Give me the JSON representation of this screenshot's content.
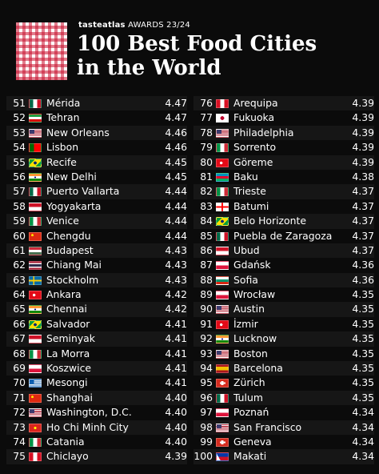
{
  "header": {
    "brand_name": "tasteatlas",
    "brand_suffix": "AWARDS 23/24",
    "title_line1": "100 Best Food Cities",
    "title_line2": "in the World"
  },
  "colors": {
    "background": "#0b0b0b",
    "logo_red": "#c8102e"
  },
  "left_column": [
    {
      "rank": "51",
      "city": "Mérida",
      "score": "4.47",
      "flag": "mexico-flag"
    },
    {
      "rank": "52",
      "city": "Tehran",
      "score": "4.47",
      "flag": "iran-flag"
    },
    {
      "rank": "53",
      "city": "New Orleans",
      "score": "4.46",
      "flag": "usa-flag"
    },
    {
      "rank": "54",
      "city": "Lisbon",
      "score": "4.46",
      "flag": "portugal-flag"
    },
    {
      "rank": "55",
      "city": "Recife",
      "score": "4.45",
      "flag": "brazil-flag"
    },
    {
      "rank": "56",
      "city": "New Delhi",
      "score": "4.45",
      "flag": "india-flag"
    },
    {
      "rank": "57",
      "city": "Puerto Vallarta",
      "score": "4.44",
      "flag": "mexico-flag"
    },
    {
      "rank": "58",
      "city": "Yogyakarta",
      "score": "4.44",
      "flag": "indonesia-flag"
    },
    {
      "rank": "59",
      "city": "Venice",
      "score": "4.44",
      "flag": "italy-flag"
    },
    {
      "rank": "60",
      "city": "Chengdu",
      "score": "4.44",
      "flag": "china-flag"
    },
    {
      "rank": "61",
      "city": "Budapest",
      "score": "4.43",
      "flag": "hungary-flag"
    },
    {
      "rank": "62",
      "city": "Chiang Mai",
      "score": "4.43",
      "flag": "thailand-flag"
    },
    {
      "rank": "63",
      "city": "Stockholm",
      "score": "4.43",
      "flag": "sweden-flag"
    },
    {
      "rank": "64",
      "city": "Ankara",
      "score": "4.42",
      "flag": "turkey-flag"
    },
    {
      "rank": "65",
      "city": "Chennai",
      "score": "4.42",
      "flag": "india-flag"
    },
    {
      "rank": "66",
      "city": "Salvador",
      "score": "4.41",
      "flag": "brazil-flag"
    },
    {
      "rank": "67",
      "city": "Seminyak",
      "score": "4.41",
      "flag": "indonesia-flag"
    },
    {
      "rank": "68",
      "city": "La Morra",
      "score": "4.41",
      "flag": "italy-flag"
    },
    {
      "rank": "69",
      "city": "Koszwice",
      "score": "4.41",
      "flag": "poland-flag"
    },
    {
      "rank": "70",
      "city": "Mesongi",
      "score": "4.41",
      "flag": "greece-flag"
    },
    {
      "rank": "71",
      "city": "Shanghai",
      "score": "4.40",
      "flag": "china-flag"
    },
    {
      "rank": "72",
      "city": "Washington, D.C.",
      "score": "4.40",
      "flag": "usa-flag"
    },
    {
      "rank": "73",
      "city": "Ho Chi Minh City",
      "score": "4.40",
      "flag": "vietnam-flag"
    },
    {
      "rank": "74",
      "city": "Catania",
      "score": "4.40",
      "flag": "italy-flag"
    },
    {
      "rank": "75",
      "city": "Chiclayo",
      "score": "4.39",
      "flag": "peru-flag"
    }
  ],
  "right_column": [
    {
      "rank": "76",
      "city": "Arequipa",
      "score": "4.39",
      "flag": "peru-flag"
    },
    {
      "rank": "77",
      "city": "Fukuoka",
      "score": "4.39",
      "flag": "japan-flag"
    },
    {
      "rank": "78",
      "city": "Philadelphia",
      "score": "4.39",
      "flag": "usa-flag"
    },
    {
      "rank": "79",
      "city": "Sorrento",
      "score": "4.39",
      "flag": "italy-flag"
    },
    {
      "rank": "80",
      "city": "Göreme",
      "score": "4.39",
      "flag": "turkey-flag"
    },
    {
      "rank": "81",
      "city": "Baku",
      "score": "4.38",
      "flag": "azerbaijan-flag"
    },
    {
      "rank": "82",
      "city": "Trieste",
      "score": "4.37",
      "flag": "italy-flag"
    },
    {
      "rank": "83",
      "city": "Batumi",
      "score": "4.37",
      "flag": "georgia-flag"
    },
    {
      "rank": "84",
      "city": "Belo Horizonte",
      "score": "4.37",
      "flag": "brazil-flag"
    },
    {
      "rank": "85",
      "city": "Puebla de Zaragoza",
      "score": "4.37",
      "flag": "mexico-flag"
    },
    {
      "rank": "86",
      "city": "Ubud",
      "score": "4.37",
      "flag": "indonesia-flag"
    },
    {
      "rank": "87",
      "city": "Gdańsk",
      "score": "4.36",
      "flag": "poland-flag"
    },
    {
      "rank": "88",
      "city": "Sofia",
      "score": "4.36",
      "flag": "bulgaria-flag"
    },
    {
      "rank": "89",
      "city": "Wrocław",
      "score": "4.35",
      "flag": "poland-flag"
    },
    {
      "rank": "90",
      "city": "Austin",
      "score": "4.35",
      "flag": "usa-flag"
    },
    {
      "rank": "91",
      "city": "İzmir",
      "score": "4.35",
      "flag": "turkey-flag"
    },
    {
      "rank": "92",
      "city": "Lucknow",
      "score": "4.35",
      "flag": "india-flag"
    },
    {
      "rank": "93",
      "city": "Boston",
      "score": "4.35",
      "flag": "usa-flag"
    },
    {
      "rank": "94",
      "city": "Barcelona",
      "score": "4.35",
      "flag": "spain-flag"
    },
    {
      "rank": "95",
      "city": "Zürich",
      "score": "4.35",
      "flag": "switzerland-flag"
    },
    {
      "rank": "96",
      "city": "Tulum",
      "score": "4.35",
      "flag": "mexico-flag"
    },
    {
      "rank": "97",
      "city": "Poznań",
      "score": "4.34",
      "flag": "poland-flag"
    },
    {
      "rank": "98",
      "city": "San Francisco",
      "score": "4.34",
      "flag": "usa-flag"
    },
    {
      "rank": "99",
      "city": "Geneva",
      "score": "4.34",
      "flag": "switzerland-flag"
    },
    {
      "rank": "100",
      "city": "Makati",
      "score": "4.34",
      "flag": "philippines-flag"
    }
  ]
}
